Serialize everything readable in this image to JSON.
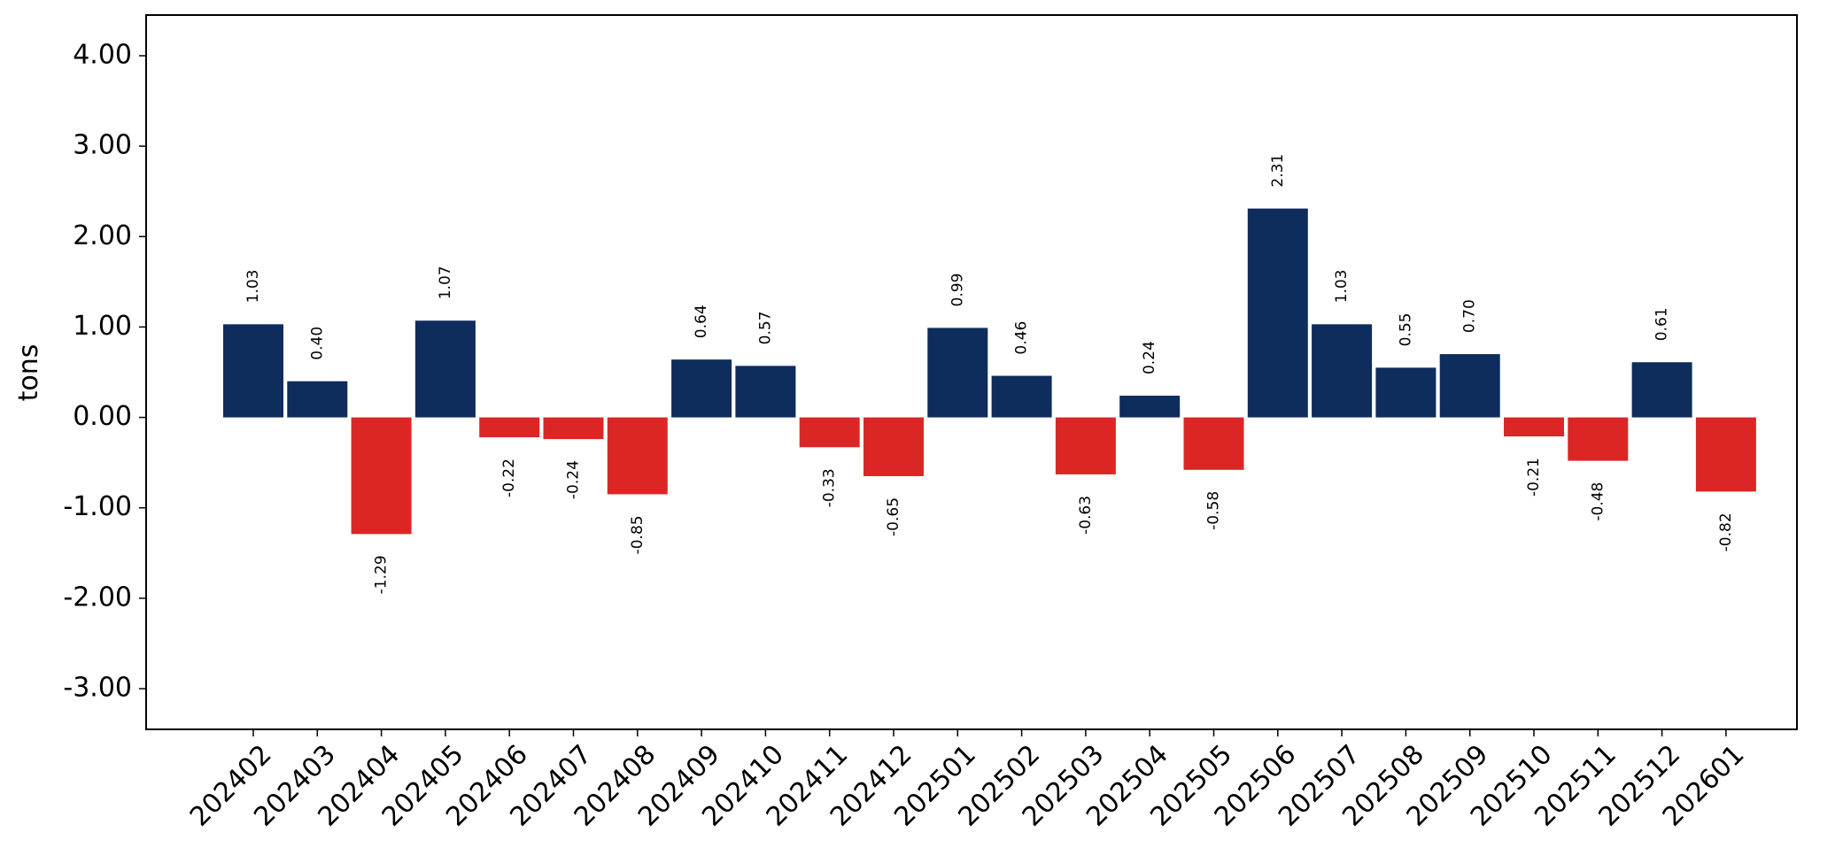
{
  "chart_data": {
    "type": "bar",
    "title": "",
    "xlabel": "",
    "ylabel": "tons",
    "ylim": [
      -3.45,
      4.45
    ],
    "yticks": [
      -3,
      -2,
      -1,
      0,
      1,
      2,
      3,
      4
    ],
    "ytick_labels": [
      "-3.00",
      "-2.00",
      "-1.00",
      "0.00",
      "1.00",
      "2.00",
      "3.00",
      "4.00"
    ],
    "grid": false,
    "legend": "none",
    "positive_color": "#0e2c5c",
    "negative_color": "#dc2626",
    "categories": [
      "202402",
      "202403",
      "202404",
      "202405",
      "202406",
      "202407",
      "202408",
      "202409",
      "202410",
      "202411",
      "202412",
      "202501",
      "202502",
      "202503",
      "202504",
      "202505",
      "202506",
      "202507",
      "202508",
      "202509",
      "202510",
      "202511",
      "202512",
      "202601"
    ],
    "values": [
      1.03,
      0.4,
      -1.29,
      1.07,
      -0.22,
      -0.24,
      -0.85,
      0.64,
      0.57,
      -0.33,
      -0.65,
      0.99,
      0.46,
      -0.63,
      0.24,
      -0.58,
      2.31,
      1.03,
      0.55,
      0.7,
      -0.21,
      -0.48,
      0.61,
      -0.82
    ],
    "value_labels": [
      "1.03",
      "0.40",
      "-1.29",
      "1.07",
      "-0.22",
      "-0.24",
      "-0.85",
      "0.64",
      "0.57",
      "-0.33",
      "-0.65",
      "0.99",
      "0.46",
      "-0.63",
      "0.24",
      "-0.58",
      "2.31",
      "1.03",
      "0.55",
      "0.70",
      "-0.21",
      "-0.48",
      "0.61",
      "-0.82"
    ]
  }
}
